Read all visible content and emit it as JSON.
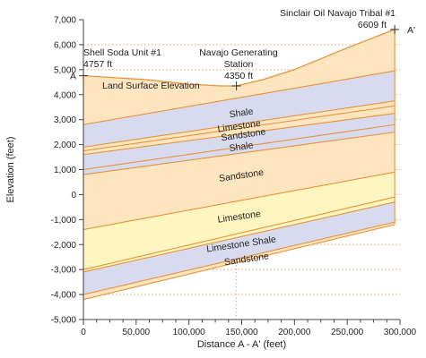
{
  "chart_data": {
    "type": "area",
    "title": "",
    "xlabel": "Distance A - A' (feet)",
    "ylabel": "Elevation (feet)",
    "xlim": [
      0,
      300000
    ],
    "ylim": [
      -5000,
      7000
    ],
    "x_ticks": [
      "0",
      "50,000",
      "100,000",
      "150,000",
      "200,000",
      "250,000",
      "300,000"
    ],
    "y_ticks": [
      "-5,000",
      "-4,000",
      "-3,000",
      "-2,000",
      "-1,000",
      "0",
      "1,000",
      "2,000",
      "3,000",
      "4,000",
      "5,000",
      "6,000",
      "7,000"
    ],
    "grid": "dotted horizontal lines",
    "colors": {
      "sandstone": "#fde5bf",
      "shale": "#d8dbef",
      "limestone": "#fdf6c0",
      "line": "#e8923a",
      "grid": "#f0a040",
      "axis": "#444444"
    },
    "surface": {
      "label": "Land Surface Elevation",
      "x": [
        0,
        60000,
        100000,
        130000,
        145000,
        170000,
        200000,
        240000,
        270000,
        295000
      ],
      "y": [
        4757,
        4600,
        4420,
        4350,
        4350,
        4600,
        5000,
        5700,
        6200,
        6609
      ]
    },
    "boundaries": [
      {
        "left": 2800,
        "right": 4950
      },
      {
        "left": 1900,
        "right": 3750
      },
      {
        "left": 1750,
        "right": 3550
      },
      {
        "left": 1600,
        "right": 3250
      },
      {
        "left": 1000,
        "right": 2800
      },
      {
        "left": 800,
        "right": 2500
      },
      {
        "left": -1400,
        "right": 900
      },
      {
        "left": -3000,
        "right": -100
      },
      {
        "left": -3100,
        "right": -300
      },
      {
        "left": -4000,
        "right": -1100
      },
      {
        "left": -4200,
        "right": -1200
      }
    ],
    "layers": [
      {
        "name": "Sandstone",
        "kind": "sandstone",
        "labeled": false
      },
      {
        "name": "Shale",
        "kind": "shale",
        "labeled": true,
        "label_x": 150000,
        "label_y": 3150
      },
      {
        "name": "Limestone",
        "kind": "sandstone",
        "labeled": true,
        "label_x": 148000,
        "label_y": 2620
      },
      {
        "name": "Sandstone",
        "kind": "sandstone",
        "labeled": true,
        "label_x": 152000,
        "label_y": 2280
      },
      {
        "name": "Shale",
        "kind": "shale",
        "labeled": true,
        "label_x": 150000,
        "label_y": 1800
      },
      {
        "name": "",
        "kind": "shale",
        "labeled": false
      },
      {
        "name": "Sandstone",
        "kind": "sandstone",
        "labeled": true,
        "label_x": 150000,
        "label_y": 650
      },
      {
        "name": "Limestone",
        "kind": "limestone",
        "labeled": true,
        "label_x": 148000,
        "label_y": -1000
      },
      {
        "name": "",
        "kind": "limestone",
        "labeled": false
      },
      {
        "name": "Limestone Shale",
        "kind": "shale",
        "labeled": true,
        "label_x": 150000,
        "label_y": -2100
      },
      {
        "name": "Sandstone",
        "kind": "sandstone",
        "labeled": true,
        "label_x": 155000,
        "label_y": -2700
      }
    ],
    "wells": [
      {
        "name": "Shell Soda Unit #1",
        "elevation": "4757 ft",
        "x": 0,
        "y": 4757
      },
      {
        "name": "Navajo Generating Station",
        "elevation": "4350 ft",
        "x": 145000,
        "y": 4350
      },
      {
        "name": "Sinclair Oil Navajo Tribal #1",
        "elevation": "6609 ft",
        "x": 295000,
        "y": 6609
      }
    ],
    "section_labels": {
      "start": "A",
      "end": "A'"
    }
  }
}
